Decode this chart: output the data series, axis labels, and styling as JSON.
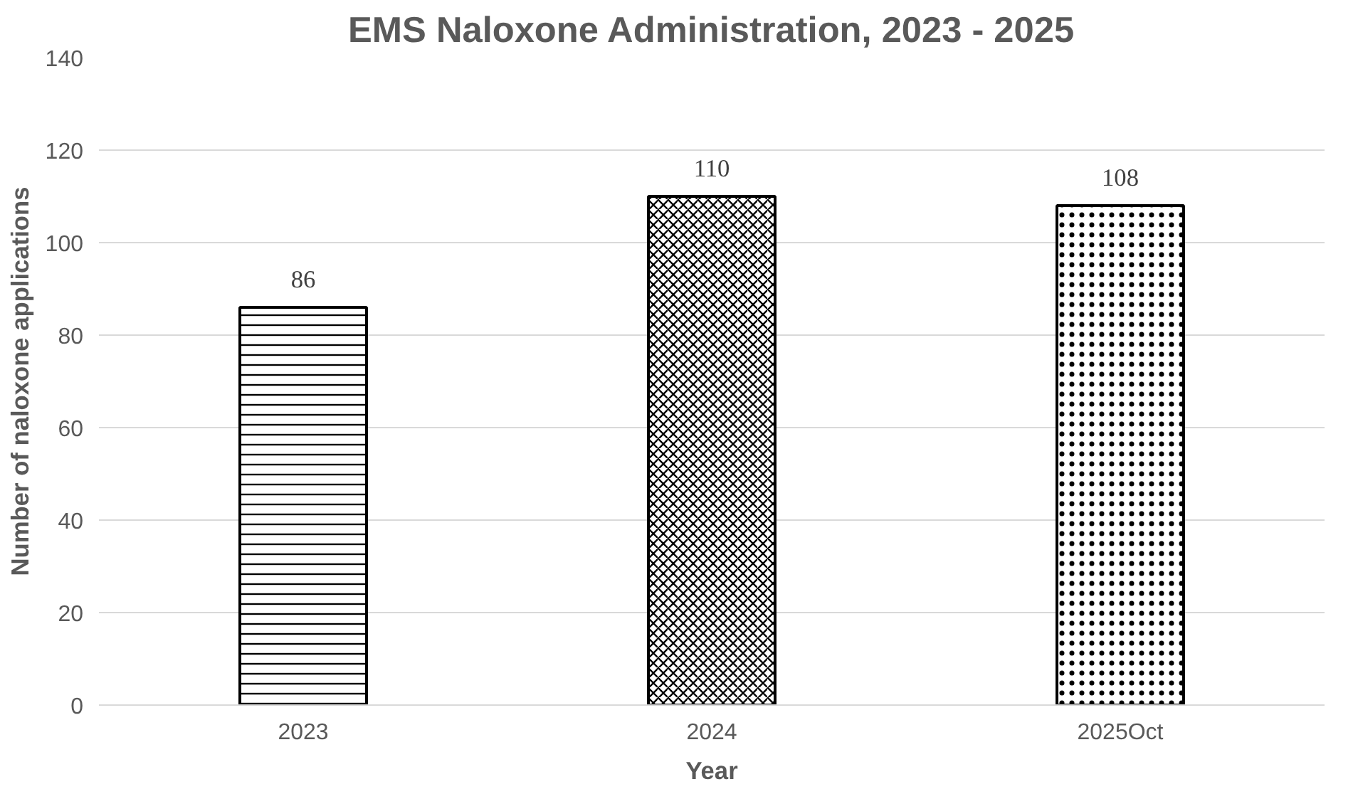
{
  "chart_data": {
    "type": "bar",
    "title": "EMS Naloxone Administration, 2023 - 2025",
    "xlabel": "Year",
    "ylabel": "Number of naloxone applications",
    "categories": [
      "2023",
      "2024",
      "2025Oct"
    ],
    "values": [
      86,
      110,
      108
    ],
    "color": "#000000",
    "ylim": [
      0,
      140
    ],
    "yticks": [
      0,
      20,
      40,
      60,
      80,
      100,
      120,
      140
    ],
    "grid": "y",
    "data_labels": true
  }
}
